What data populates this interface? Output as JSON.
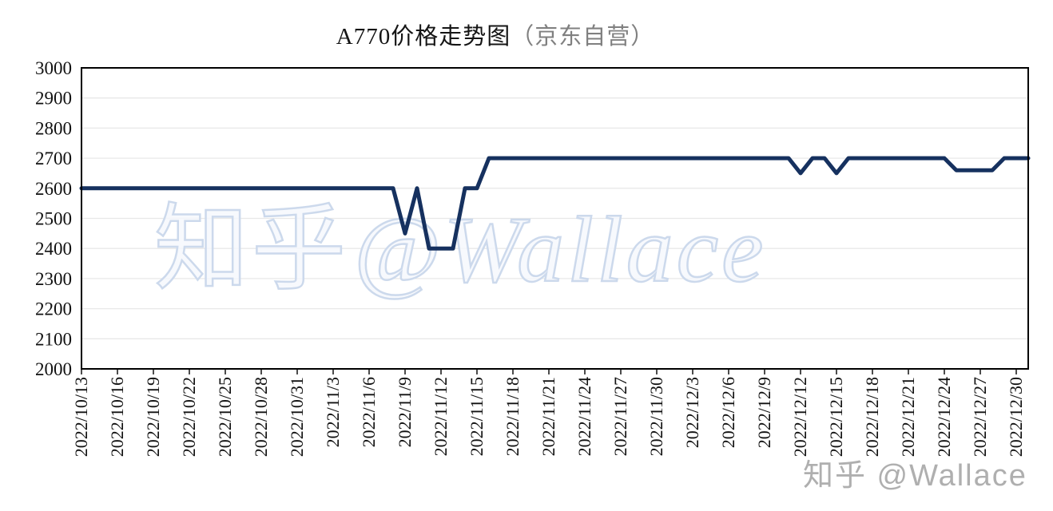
{
  "title": {
    "text": "A770价格走势图",
    "suffix": "（京东自营）"
  },
  "watermarks": {
    "center_cjk": "知乎",
    "center_handle": "@Wallace",
    "corner": "知乎 @Wallace"
  },
  "colors": {
    "line": "#16315f",
    "grid": "#e8e8e8",
    "axis": "#000000",
    "title_suffix": "#808080",
    "watermark_stroke": "#ccd9ec",
    "watermark_fill": "#f5f8fc",
    "watermark_corner": "#a9a9a9"
  },
  "chart_data": {
    "type": "line",
    "title": "A770价格走势图（京东自营）",
    "xlabel": "",
    "ylabel": "",
    "ylim": [
      2000,
      3000
    ],
    "ytick_interval": 100,
    "grid": "horizontal-only",
    "legend": "none",
    "x_tick_labels": [
      "2022/10/13",
      "2022/10/16",
      "2022/10/19",
      "2022/10/22",
      "2022/10/25",
      "2022/10/28",
      "2022/10/31",
      "2022/11/3",
      "2022/11/6",
      "2022/11/9",
      "2022/11/12",
      "2022/11/15",
      "2022/11/18",
      "2022/11/21",
      "2022/11/24",
      "2022/11/27",
      "2022/11/30",
      "2022/12/3",
      "2022/12/6",
      "2022/12/9",
      "2022/12/12",
      "2022/12/15",
      "2022/12/18",
      "2022/12/21",
      "2022/12/24",
      "2022/12/27",
      "2022/12/30"
    ],
    "x_tick_step_days": 3,
    "series": [
      {
        "dates": [
          "2022/10/13",
          "2022/10/14",
          "2022/10/15",
          "2022/10/16",
          "2022/10/17",
          "2022/10/18",
          "2022/10/19",
          "2022/10/20",
          "2022/10/21",
          "2022/10/22",
          "2022/10/23",
          "2022/10/24",
          "2022/10/25",
          "2022/10/26",
          "2022/10/27",
          "2022/10/28",
          "2022/10/29",
          "2022/10/30",
          "2022/10/31",
          "2022/11/1",
          "2022/11/2",
          "2022/11/3",
          "2022/11/4",
          "2022/11/5",
          "2022/11/6",
          "2022/11/7",
          "2022/11/8",
          "2022/11/9",
          "2022/11/10",
          "2022/11/11",
          "2022/11/12",
          "2022/11/13",
          "2022/11/14",
          "2022/11/15",
          "2022/11/16",
          "2022/11/17",
          "2022/11/18",
          "2022/11/19",
          "2022/11/20",
          "2022/11/21",
          "2022/11/22",
          "2022/11/23",
          "2022/11/24",
          "2022/11/25",
          "2022/11/26",
          "2022/11/27",
          "2022/11/28",
          "2022/11/29",
          "2022/11/30",
          "2022/12/1",
          "2022/12/2",
          "2022/12/3",
          "2022/12/4",
          "2022/12/5",
          "2022/12/6",
          "2022/12/7",
          "2022/12/8",
          "2022/12/9",
          "2022/12/10",
          "2022/12/11",
          "2022/12/12",
          "2022/12/13",
          "2022/12/14",
          "2022/12/15",
          "2022/12/16",
          "2022/12/17",
          "2022/12/18",
          "2022/12/19",
          "2022/12/20",
          "2022/12/21",
          "2022/12/22",
          "2022/12/23",
          "2022/12/24",
          "2022/12/25",
          "2022/12/26",
          "2022/12/27",
          "2022/12/28",
          "2022/12/29",
          "2022/12/30",
          "2022/12/31"
        ],
        "values": [
          2600,
          2600,
          2600,
          2600,
          2600,
          2600,
          2600,
          2600,
          2600,
          2600,
          2600,
          2600,
          2600,
          2600,
          2600,
          2600,
          2600,
          2600,
          2600,
          2600,
          2600,
          2600,
          2600,
          2600,
          2600,
          2600,
          2600,
          2450,
          2600,
          2400,
          2400,
          2400,
          2600,
          2600,
          2700,
          2700,
          2700,
          2700,
          2700,
          2700,
          2700,
          2700,
          2700,
          2700,
          2700,
          2700,
          2700,
          2700,
          2700,
          2700,
          2700,
          2700,
          2700,
          2700,
          2700,
          2700,
          2700,
          2700,
          2700,
          2700,
          2650,
          2700,
          2700,
          2650,
          2700,
          2700,
          2700,
          2700,
          2700,
          2700,
          2700,
          2700,
          2700,
          2660,
          2660,
          2660,
          2660,
          2700,
          2700,
          2700
        ]
      }
    ]
  }
}
